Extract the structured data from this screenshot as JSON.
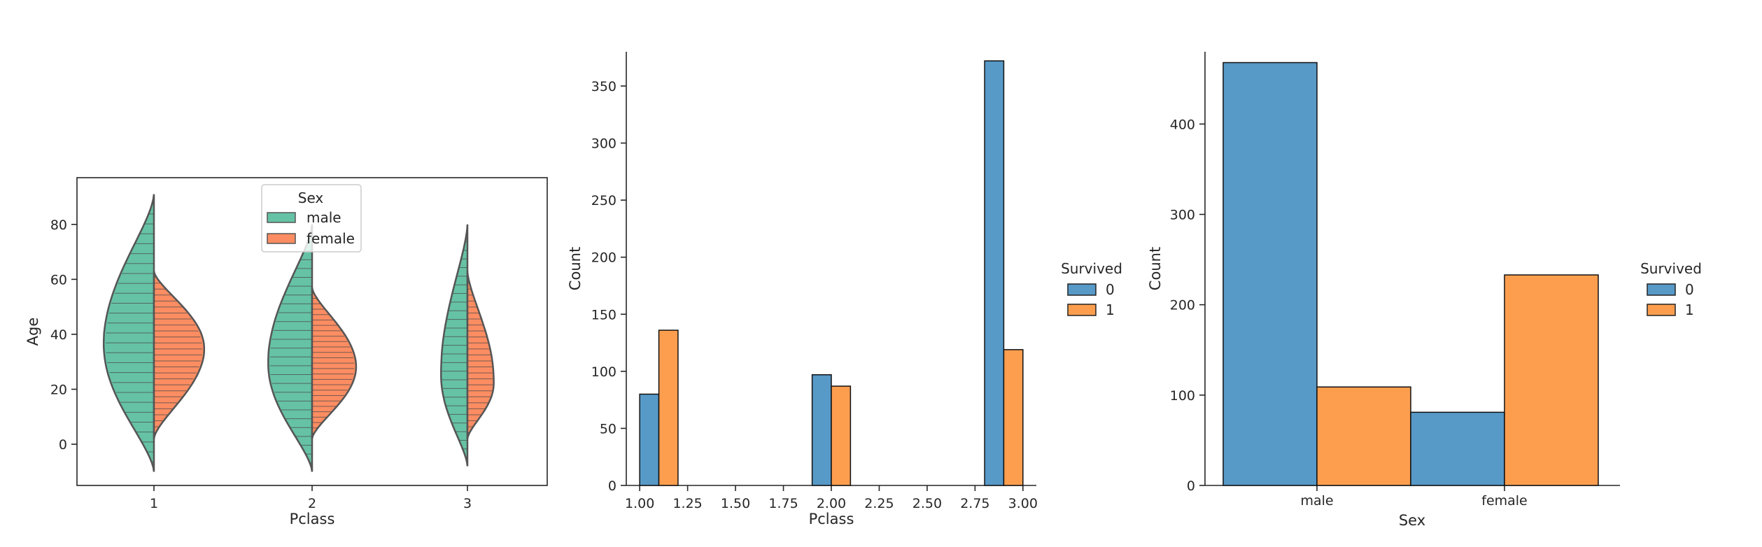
{
  "chart_data": [
    {
      "type": "violin",
      "xlabel": "Pclass",
      "ylabel": "Age",
      "categories": [
        "1",
        "2",
        "3"
      ],
      "ylim": [
        -15,
        97
      ],
      "yticks": [
        0,
        20,
        40,
        60,
        80
      ],
      "split": true,
      "inner": "stick",
      "legend": {
        "title": "Sex",
        "entries": [
          "male",
          "female"
        ],
        "placement": "upper-center"
      },
      "series": [
        {
          "name": "male",
          "color": "#66c2a5",
          "extent": [
            [
              -10,
              91
            ],
            [
              -10,
              80
            ],
            [
              -8,
              80
            ]
          ],
          "median": [
            36,
            29,
            25
          ]
        },
        {
          "name": "female",
          "color": "#fc8d62",
          "extent": [
            [
              2,
              63
            ],
            [
              2,
              57
            ],
            [
              2,
              63
            ]
          ],
          "median": [
            35,
            28,
            22
          ]
        }
      ],
      "grid": false
    },
    {
      "type": "bar",
      "xlabel": "Pclass",
      "ylabel": "Count",
      "xlim": [
        0.93,
        3.07
      ],
      "ylim": [
        0,
        380
      ],
      "xticks": [
        "1.00",
        "1.25",
        "1.50",
        "1.75",
        "2.00",
        "2.25",
        "2.50",
        "2.75",
        "3.00"
      ],
      "yticks": [
        0,
        50,
        100,
        150,
        200,
        250,
        300,
        350
      ],
      "legend": {
        "title": "Survived",
        "entries": [
          "0",
          "1"
        ],
        "placement": "outside-right"
      },
      "series": [
        {
          "name": "0",
          "color": "#5799c7",
          "x": [
            1.0,
            2.0,
            3.0
          ],
          "values": [
            80,
            97,
            372
          ]
        },
        {
          "name": "1",
          "color": "#fd9e4f",
          "x": [
            1.0,
            2.0,
            3.0
          ],
          "values": [
            136,
            87,
            119
          ]
        }
      ],
      "grid": false
    },
    {
      "type": "bar",
      "xlabel": "Sex",
      "ylabel": "Count",
      "categories": [
        "male",
        "female"
      ],
      "ylim": [
        0,
        480
      ],
      "yticks": [
        0,
        100,
        200,
        300,
        400
      ],
      "legend": {
        "title": "Survived",
        "entries": [
          "0",
          "1"
        ],
        "placement": "outside-right"
      },
      "series": [
        {
          "name": "0",
          "color": "#5799c7",
          "values": [
            468,
            81
          ]
        },
        {
          "name": "1",
          "color": "#fd9e4f",
          "values": [
            109,
            233
          ]
        }
      ],
      "grid": false
    }
  ]
}
